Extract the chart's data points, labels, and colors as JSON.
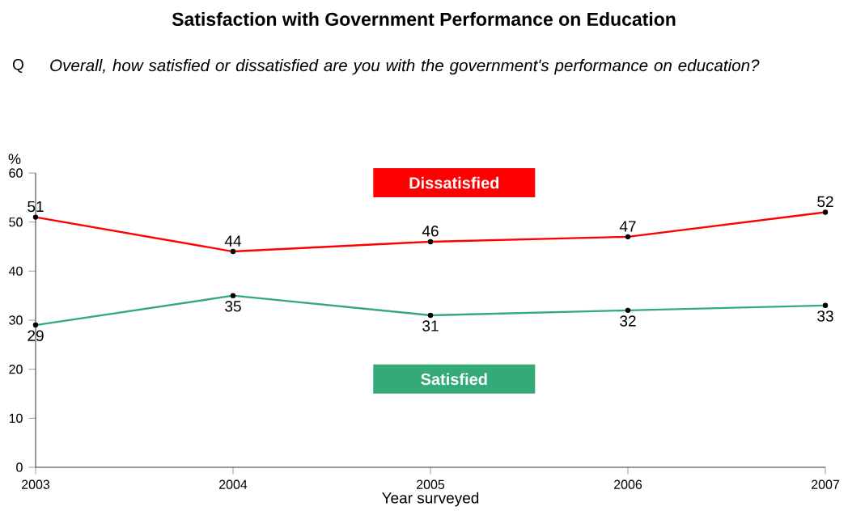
{
  "chart_data": {
    "type": "line",
    "title": "Satisfaction with Government Performance on Education",
    "subtitle": "Overall, how satisfied or dissatisfied are you with the government's performance on education?",
    "annotations": [
      "Q"
    ],
    "xlabel": "Year surveyed",
    "ylabel": "%",
    "x": [
      2003,
      2004,
      2005,
      2006,
      2007
    ],
    "xlim": [
      2003,
      2007
    ],
    "xticks": [
      2003,
      2004,
      2005,
      2006,
      2007
    ],
    "ylim": [
      0,
      60
    ],
    "yticks": [
      0,
      10,
      20,
      30,
      40,
      50,
      60
    ],
    "series": [
      {
        "name": "Dissatisfied",
        "color": "#ff0000",
        "values": [
          51,
          44,
          46,
          47,
          52
        ]
      },
      {
        "name": "Satisfied",
        "color": "#33aa77",
        "values": [
          29,
          35,
          31,
          32,
          33
        ]
      }
    ],
    "data_labels": true,
    "legend": false,
    "grid": false,
    "marker": "circle",
    "line_style": "solid"
  }
}
